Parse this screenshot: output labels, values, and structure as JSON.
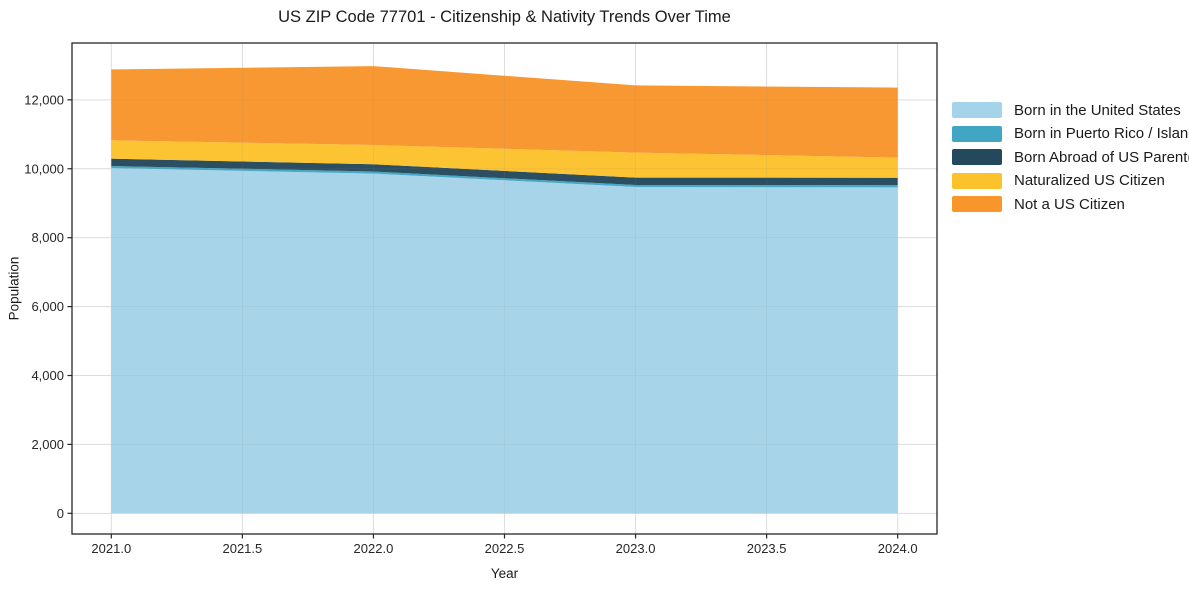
{
  "chart_data": {
    "type": "area",
    "stacked": true,
    "title": "US ZIP Code 77701 - Citizenship & Nativity Trends Over Time",
    "xlabel": "Year",
    "ylabel": "Population",
    "x": [
      2021,
      2022,
      2023,
      2024
    ],
    "series": [
      {
        "name": "Born in the United States",
        "color": "#A5D3E9",
        "values": [
          10020,
          9860,
          9470,
          9460
        ]
      },
      {
        "name": "Born in Puerto Rico / Islands",
        "color": "#41A6C4",
        "values": [
          60,
          60,
          60,
          65
        ]
      },
      {
        "name": "Born Abroad of US Parent(s)",
        "color": "#24495C",
        "values": [
          215,
          210,
          215,
          215
        ]
      },
      {
        "name": "Naturalized US Citizen",
        "color": "#FCC22B",
        "values": [
          530,
          560,
          725,
          585
        ]
      },
      {
        "name": "Not a US Citizen",
        "color": "#F8952B",
        "values": [
          2060,
          2290,
          1950,
          2030
        ]
      }
    ],
    "stack_totals": [
      12885,
      12980,
      12420,
      12355
    ],
    "xlim": [
      2020.85,
      2024.15
    ],
    "ylim": [
      -600,
      13650
    ],
    "xticks": [
      2021.0,
      2021.5,
      2022.0,
      2022.5,
      2023.0,
      2023.5,
      2024.0
    ],
    "xtick_labels": [
      "2021.0",
      "2021.5",
      "2022.0",
      "2022.5",
      "2023.0",
      "2023.5",
      "2024.0"
    ],
    "yticks": [
      0,
      2000,
      4000,
      6000,
      8000,
      10000,
      12000
    ],
    "ytick_labels": [
      "0",
      "2,000",
      "4,000",
      "6,000",
      "8,000",
      "10,000",
      "12,000"
    ],
    "grid": true,
    "legend_position": "right of plot, no frame",
    "colors": {
      "spine": "#262626",
      "tick_label": "#262626",
      "gridline": "#e9e9e9",
      "background": "#ffffff"
    }
  }
}
